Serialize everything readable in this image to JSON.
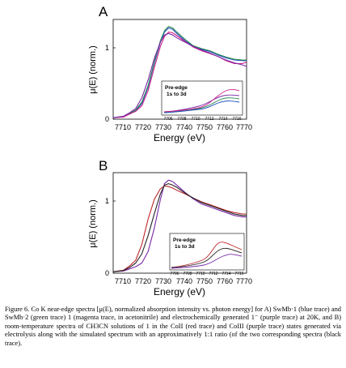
{
  "panels": [
    {
      "letter": "A",
      "xlabel": "Energy (eV)",
      "ylabel": "μ(E) (norm.)",
      "xticks": [
        "7710",
        "7720",
        "7730",
        "7740",
        "7750",
        "7760",
        "7770"
      ],
      "yticks": [
        "0",
        "1"
      ],
      "inset": {
        "label_line1": "Pre-edge",
        "label_line2": "1s to 3d",
        "xticks": [
          "7706",
          "7708",
          "7710",
          "7712",
          "7714",
          "7716"
        ]
      }
    },
    {
      "letter": "B",
      "xlabel": "Energy (eV)",
      "ylabel": "μ(E) (norm.)",
      "xticks": [
        "7710",
        "7720",
        "7730",
        "7740",
        "7750",
        "7760",
        "7770"
      ],
      "yticks": [
        "0",
        "1"
      ],
      "inset": {
        "label_line1": "Pre-edge",
        "label_line2": "1s to 3d",
        "xticks": [
          "7706",
          "7708",
          "7710",
          "7712",
          "7714",
          "7716"
        ]
      }
    }
  ],
  "caption": "Figure 6. Co K near-edge spectra [μ(E), normalized absorption intensity vs. photon energy] for A) SwMb·1 (blue trace) and SwMb·2 (green trace) 1 (magenta trace, in acetonitrile) and electrochemically generated 1⁻ (purple trace) at 20K, and B) room-temperature spectra of CH3CN solutions of 1 in the CoII (red trace) and CoIII (purple trace) states generated via electrolysis along with the simulated spectrum with an approximatively 1:1 ratio (of the two corresponding spectra (black trace).",
  "chart_data": [
    {
      "type": "line",
      "title": "A",
      "xlabel": "Energy (eV)",
      "ylabel": "μ(E) (norm.)",
      "xlim": [
        7705,
        7770
      ],
      "ylim": [
        0,
        1.4
      ],
      "series": [
        {
          "color": "#1f4fbf",
          "x": [
            7705,
            7710,
            7713,
            7716,
            7719,
            7722,
            7725,
            7728,
            7730,
            7732,
            7734,
            7736,
            7740,
            7744,
            7748,
            7752,
            7756,
            7760,
            7764,
            7768,
            7770
          ],
          "y": [
            0.02,
            0.04,
            0.08,
            0.12,
            0.22,
            0.45,
            0.78,
            1.08,
            1.22,
            1.28,
            1.26,
            1.2,
            1.1,
            1.02,
            0.98,
            0.95,
            0.9,
            0.86,
            0.83,
            0.82,
            0.82
          ]
        },
        {
          "color": "#2e8b57",
          "x": [
            7705,
            7710,
            7713,
            7716,
            7719,
            7722,
            7725,
            7728,
            7730,
            7732,
            7734,
            7736,
            7740,
            7744,
            7748,
            7752,
            7756,
            7760,
            7764,
            7768,
            7770
          ],
          "y": [
            0.02,
            0.04,
            0.08,
            0.13,
            0.24,
            0.47,
            0.8,
            1.1,
            1.24,
            1.3,
            1.28,
            1.22,
            1.12,
            1.03,
            0.99,
            0.96,
            0.91,
            0.87,
            0.84,
            0.83,
            0.83
          ]
        },
        {
          "color": "#cc1f8a",
          "x": [
            7705,
            7710,
            7713,
            7716,
            7719,
            7722,
            7725,
            7728,
            7730,
            7732,
            7734,
            7736,
            7740,
            7744,
            7748,
            7752,
            7756,
            7760,
            7764,
            7768,
            7770
          ],
          "y": [
            0.02,
            0.03,
            0.07,
            0.11,
            0.19,
            0.4,
            0.72,
            1.02,
            1.16,
            1.22,
            1.21,
            1.17,
            1.09,
            1.01,
            0.96,
            0.92,
            0.88,
            0.82,
            0.78,
            0.78,
            0.8
          ]
        },
        {
          "color": "#7a2aa8",
          "x": [
            7705,
            7710,
            7713,
            7716,
            7719,
            7722,
            7725,
            7728,
            7730,
            7732,
            7734,
            7736,
            7740,
            7744,
            7748,
            7752,
            7756,
            7760,
            7764,
            7768,
            7770
          ],
          "y": [
            0.02,
            0.04,
            0.09,
            0.15,
            0.3,
            0.55,
            0.85,
            1.08,
            1.18,
            1.2,
            1.18,
            1.14,
            1.08,
            1.02,
            0.97,
            0.93,
            0.88,
            0.83,
            0.79,
            0.76,
            0.74
          ]
        }
      ]
    },
    {
      "type": "line",
      "title": "B",
      "xlabel": "Energy (eV)",
      "ylabel": "μ(E) (norm.)",
      "xlim": [
        7705,
        7770
      ],
      "ylim": [
        0,
        1.4
      ],
      "series": [
        {
          "color": "#c0282d",
          "x": [
            7705,
            7710,
            7713,
            7716,
            7719,
            7722,
            7725,
            7728,
            7730,
            7732,
            7734,
            7736,
            7740,
            7744,
            7748,
            7752,
            7756,
            7760,
            7764,
            7768,
            7770
          ],
          "y": [
            0.02,
            0.04,
            0.1,
            0.18,
            0.4,
            0.75,
            1.02,
            1.17,
            1.21,
            1.2,
            1.18,
            1.15,
            1.1,
            1.04,
            0.99,
            0.95,
            0.91,
            0.87,
            0.84,
            0.82,
            0.82
          ]
        },
        {
          "color": "#7a2aa8",
          "x": [
            7705,
            7710,
            7713,
            7716,
            7719,
            7722,
            7725,
            7728,
            7730,
            7732,
            7734,
            7736,
            7740,
            7744,
            7748,
            7752,
            7756,
            7760,
            7764,
            7768,
            7770
          ],
          "y": [
            0.02,
            0.03,
            0.06,
            0.09,
            0.14,
            0.3,
            0.62,
            1.02,
            1.24,
            1.29,
            1.27,
            1.22,
            1.12,
            1.03,
            0.96,
            0.92,
            0.88,
            0.84,
            0.8,
            0.78,
            0.78
          ]
        },
        {
          "color": "#222222",
          "x": [
            7705,
            7710,
            7713,
            7716,
            7719,
            7722,
            7725,
            7728,
            7730,
            7732,
            7734,
            7736,
            7740,
            7744,
            7748,
            7752,
            7756,
            7760,
            7764,
            7768,
            7770
          ],
          "y": [
            0.02,
            0.035,
            0.08,
            0.14,
            0.27,
            0.52,
            0.82,
            1.1,
            1.22,
            1.24,
            1.22,
            1.19,
            1.11,
            1.04,
            0.98,
            0.94,
            0.9,
            0.86,
            0.82,
            0.8,
            0.8
          ]
        }
      ]
    }
  ]
}
